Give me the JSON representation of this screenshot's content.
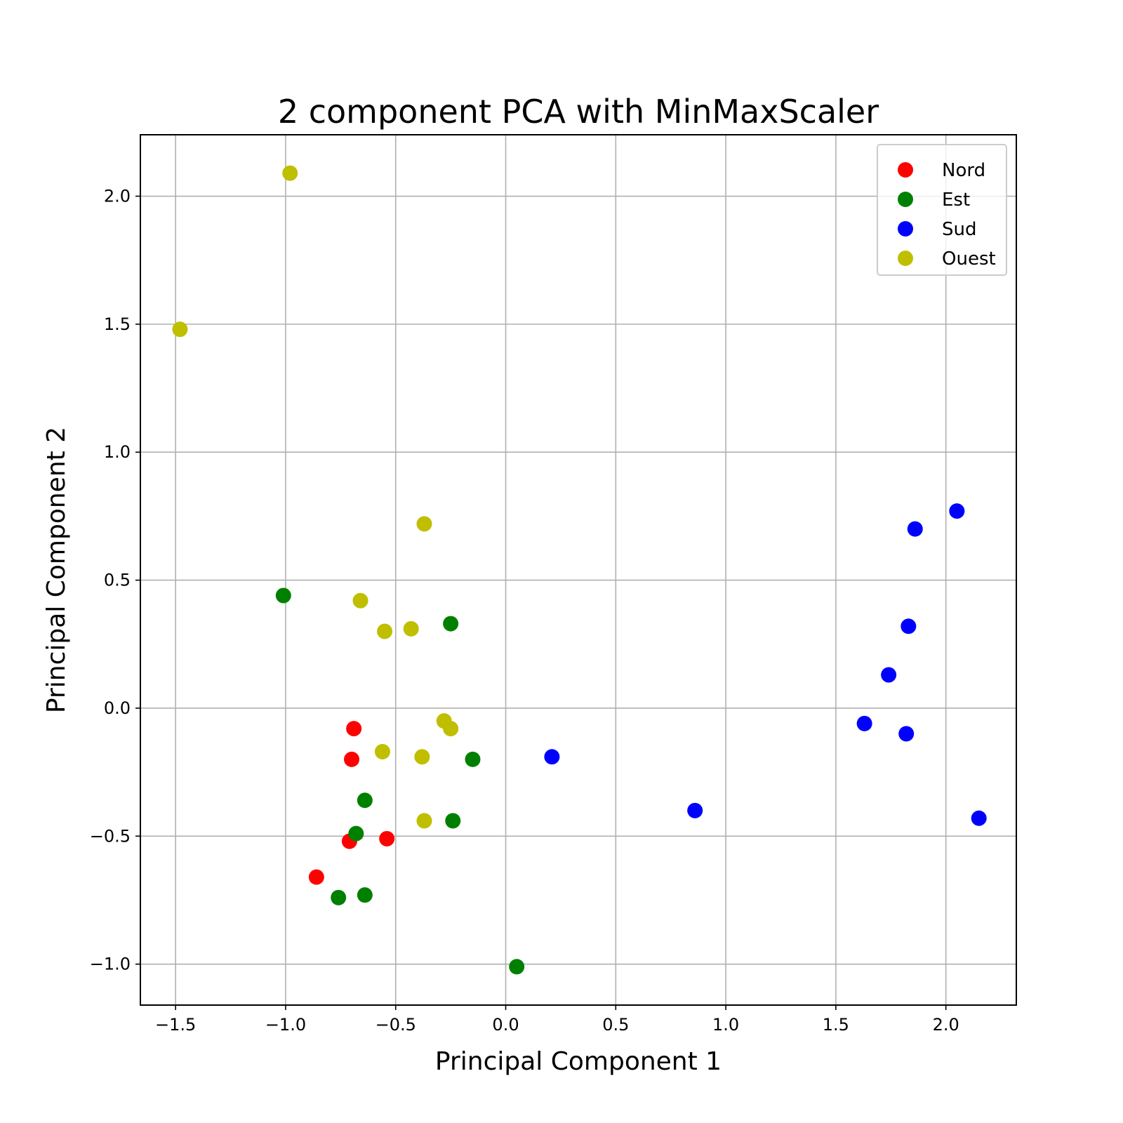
{
  "chart_data": {
    "type": "scatter",
    "title": "2 component PCA with MinMaxScaler",
    "xlabel": "Principal Component 1",
    "ylabel": "Principal Component 2",
    "xlim": [
      -1.66,
      2.32
    ],
    "ylim": [
      -1.16,
      2.24
    ],
    "xticks": [
      -1.5,
      -1.0,
      -0.5,
      0.0,
      0.5,
      1.0,
      1.5,
      2.0
    ],
    "xtick_labels": [
      "−1.5",
      "−1.0",
      "−0.5",
      "0.0",
      "0.5",
      "1.0",
      "1.5",
      "2.0"
    ],
    "yticks": [
      -1.0,
      -0.5,
      0.0,
      0.5,
      1.0,
      1.5,
      2.0
    ],
    "ytick_labels": [
      "−1.0",
      "−0.5",
      "0.0",
      "0.5",
      "1.0",
      "1.5",
      "2.0"
    ],
    "grid": true,
    "legend_position": "top-right",
    "series": [
      {
        "name": "Nord",
        "color": "#ff0000",
        "points": [
          [
            -0.69,
            -0.08
          ],
          [
            -0.7,
            -0.2
          ],
          [
            -0.71,
            -0.52
          ],
          [
            -0.54,
            -0.51
          ],
          [
            -0.86,
            -0.66
          ]
        ]
      },
      {
        "name": "Est",
        "color": "#008000",
        "points": [
          [
            -1.01,
            0.44
          ],
          [
            -0.25,
            0.33
          ],
          [
            -0.15,
            -0.2
          ],
          [
            -0.64,
            -0.36
          ],
          [
            -0.68,
            -0.49
          ],
          [
            -0.24,
            -0.44
          ],
          [
            -0.76,
            -0.74
          ],
          [
            -0.64,
            -0.73
          ],
          [
            0.05,
            -1.01
          ]
        ]
      },
      {
        "name": "Sud",
        "color": "#0000ff",
        "points": [
          [
            2.05,
            0.77
          ],
          [
            1.86,
            0.7
          ],
          [
            1.83,
            0.32
          ],
          [
            1.74,
            0.13
          ],
          [
            1.63,
            -0.06
          ],
          [
            1.82,
            -0.1
          ],
          [
            0.21,
            -0.19
          ],
          [
            0.86,
            -0.4
          ],
          [
            2.15,
            -0.43
          ]
        ]
      },
      {
        "name": "Ouest",
        "color": "#bfbf00",
        "points": [
          [
            -0.98,
            2.09
          ],
          [
            -1.48,
            1.48
          ],
          [
            -0.37,
            0.72
          ],
          [
            -0.66,
            0.42
          ],
          [
            -0.55,
            0.3
          ],
          [
            -0.43,
            0.31
          ],
          [
            -0.28,
            -0.05
          ],
          [
            -0.25,
            -0.08
          ],
          [
            -0.56,
            -0.17
          ],
          [
            -0.38,
            -0.19
          ],
          [
            -0.37,
            -0.44
          ]
        ]
      }
    ]
  }
}
